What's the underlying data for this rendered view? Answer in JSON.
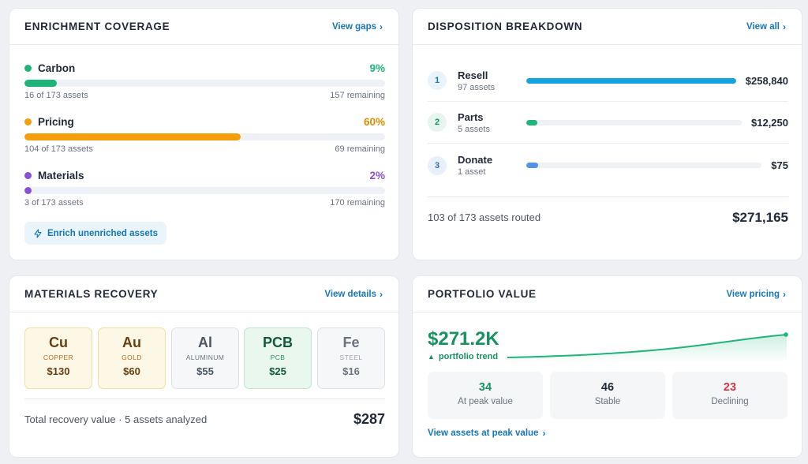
{
  "enrichment": {
    "title": "ENRICHMENT COVERAGE",
    "link": "View gaps",
    "items": [
      {
        "label": "Carbon",
        "pct": "9%",
        "fraction": 0.09,
        "count": "16 of 173 assets",
        "remaining": "157 remaining",
        "color": "#1fb57a"
      },
      {
        "label": "Pricing",
        "pct": "60%",
        "fraction": 0.6,
        "count": "104 of 173 assets",
        "remaining": "69 remaining",
        "color": "#f59e0b"
      },
      {
        "label": "Materials",
        "pct": "2%",
        "fraction": 0.02,
        "count": "3 of 173 assets",
        "remaining": "170 remaining",
        "color": "#8b4fd9"
      }
    ],
    "button": "Enrich unenriched assets",
    "button_icon": "bolt-icon"
  },
  "disposition": {
    "title": "DISPOSITION BREAKDOWN",
    "link": "View all",
    "rows": [
      {
        "num": "1",
        "name": "Resell",
        "sub": "97 assets",
        "value": "$258,840",
        "fraction": 1.0,
        "color": "#14a3e0",
        "badge_bg": "#e8f4fb",
        "badge_fg": "#1677b8"
      },
      {
        "num": "2",
        "name": "Parts",
        "sub": "5 assets",
        "value": "$12,250",
        "fraction": 0.05,
        "color": "#1fb57a",
        "badge_bg": "#e6f6ee",
        "badge_fg": "#17935f"
      },
      {
        "num": "3",
        "name": "Donate",
        "sub": "1 asset",
        "value": "$75",
        "fraction": 0.05,
        "color": "#4f94e6",
        "badge_bg": "#e8f0fb",
        "badge_fg": "#2f6fc2"
      }
    ],
    "footer_label": "103 of 173 assets routed",
    "footer_total": "$271,165"
  },
  "materials": {
    "title": "MATERIALS RECOVERY",
    "link": "View details",
    "tiles": [
      {
        "sym": "Cu",
        "name": "COPPER",
        "value": "$130",
        "bg": "#fdf8e6",
        "border": "#f0dfa0",
        "fg": "#6b3e10",
        "name_fg": "#b26b1d"
      },
      {
        "sym": "Au",
        "name": "GOLD",
        "value": "$60",
        "bg": "#fdf8e6",
        "border": "#f0dfa0",
        "fg": "#6b3e10",
        "name_fg": "#b26b1d"
      },
      {
        "sym": "Al",
        "name": "ALUMINUM",
        "value": "$55",
        "bg": "#f6f7f9",
        "border": "#dde1e6",
        "fg": "#4b5563",
        "name_fg": "#6b7280"
      },
      {
        "sym": "PCB",
        "name": "PCB",
        "value": "$25",
        "bg": "#e9f7ef",
        "border": "#bfe6cf",
        "fg": "#14583a",
        "name_fg": "#2f8f5f"
      },
      {
        "sym": "Fe",
        "name": "STEEL",
        "value": "$16",
        "bg": "#f6f7f9",
        "border": "#dde1e6",
        "fg": "#6b7280",
        "name_fg": "#9ca3af"
      }
    ],
    "footer_label": "Total recovery value · 5 assets analyzed",
    "footer_total": "$287"
  },
  "portfolio": {
    "title": "PORTFOLIO VALUE",
    "link": "View pricing",
    "value": "$271.2K",
    "trend_label": "portfolio trend",
    "stats": [
      {
        "value": "34",
        "label": "At peak value",
        "color": "#17935f"
      },
      {
        "value": "46",
        "label": "Stable",
        "color": "#1f2937"
      },
      {
        "value": "23",
        "label": "Declining",
        "color": "#dc3545"
      }
    ],
    "bottom_link": "View assets at peak value"
  }
}
